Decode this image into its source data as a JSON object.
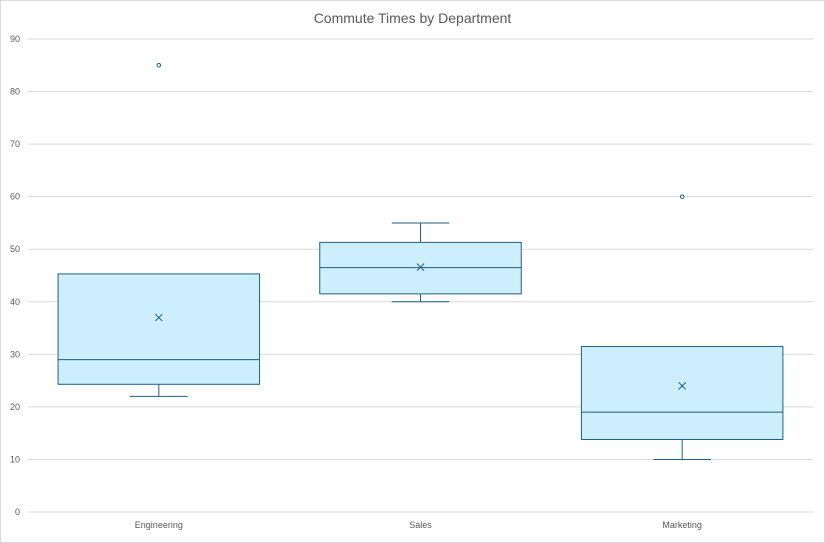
{
  "chart_data": {
    "type": "box",
    "title": "Commute Times by Department",
    "xlabel": "",
    "ylabel": "",
    "ylim": [
      0,
      90
    ],
    "yticks": [
      0,
      10,
      20,
      30,
      40,
      50,
      60,
      70,
      80,
      90
    ],
    "grid": true,
    "categories": [
      "Engineering",
      "Sales",
      "Marketing"
    ],
    "boxes": [
      {
        "category": "Engineering",
        "whisker_low": 22,
        "q1": 24.3,
        "median": 29,
        "q3": 45.3,
        "whisker_high": 45.3,
        "mean": 37,
        "outliers": [
          85
        ]
      },
      {
        "category": "Sales",
        "whisker_low": 40,
        "q1": 41.5,
        "median": 46.5,
        "q3": 51.3,
        "whisker_high": 55,
        "mean": 46.6,
        "outliers": []
      },
      {
        "category": "Marketing",
        "whisker_low": 10,
        "q1": 13.8,
        "median": 19,
        "q3": 31.5,
        "whisker_high": 31.5,
        "mean": 24,
        "outliers": [
          60
        ]
      }
    ],
    "colors": {
      "box_fill": "#cdeefc",
      "box_stroke": "#1f5f7f",
      "grid": "#d9d9d9",
      "text": "#595959"
    }
  }
}
